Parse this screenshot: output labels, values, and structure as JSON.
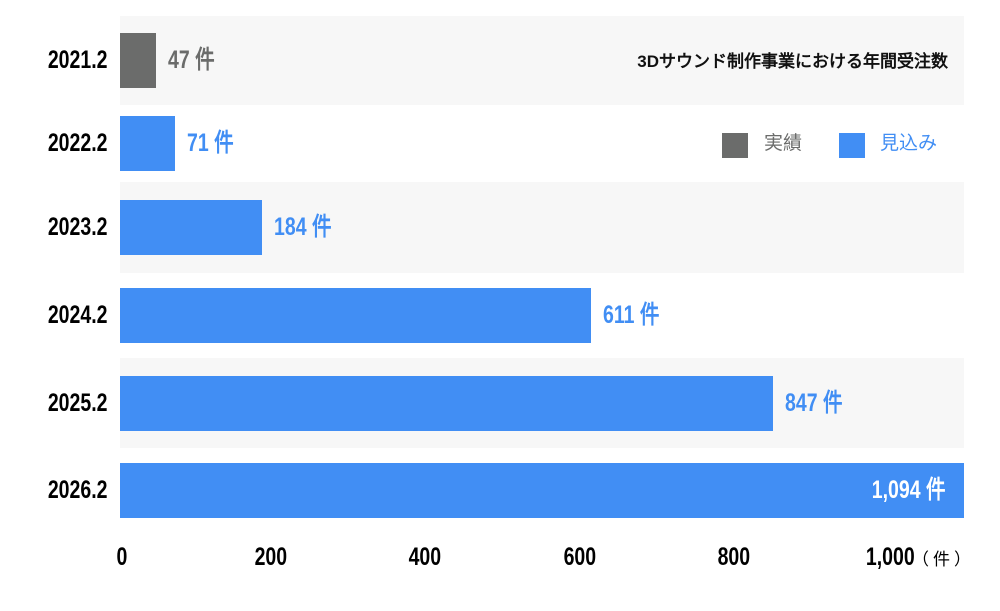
{
  "chart_data": {
    "type": "bar",
    "orientation": "horizontal",
    "title": "3Dサウンド制作事業における年間受注数",
    "categories": [
      "2021.2",
      "2022.2",
      "2023.2",
      "2024.2",
      "2025.2",
      "2026.2"
    ],
    "values": [
      47,
      71,
      184,
      611,
      847,
      1094
    ],
    "value_labels": [
      "47 件",
      "71 件",
      "184 件",
      "611 件",
      "847 件",
      "1,094 件"
    ],
    "bar_series": [
      "実績",
      "見込み",
      "見込み",
      "見込み",
      "見込み",
      "見込み"
    ],
    "series": [
      {
        "name": "実績",
        "color": "#6b6c6b"
      },
      {
        "name": "見込み",
        "color": "#418ef4"
      }
    ],
    "xaxis": {
      "ticks": [
        0,
        200,
        400,
        600,
        800,
        1000
      ],
      "tick_labels": [
        "0",
        "200",
        "400",
        "600",
        "800",
        "1,000"
      ],
      "unit_label": "（件）",
      "range": [
        0,
        1094
      ]
    },
    "legend": "top-right",
    "grid": false,
    "band_colors": [
      "#f7f7f7",
      "#ffffff"
    ]
  }
}
